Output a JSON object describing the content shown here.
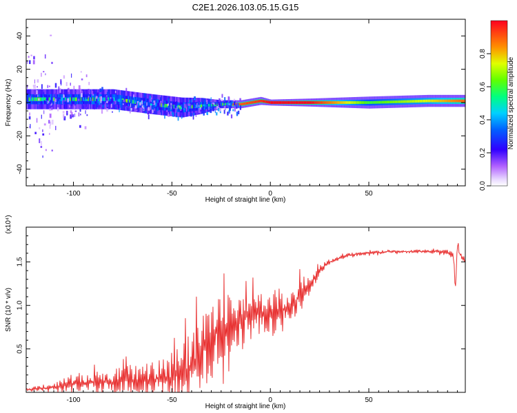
{
  "title": "C2E1.2026.103.05.15.G15",
  "colors": {
    "snr_line": "#e83030",
    "axis": "#000000",
    "ridge_hot": "#ff2040",
    "ridge_mid": "#20e060",
    "spread_low": "#7a00ff"
  },
  "chart_data": [
    {
      "id": "spectrogram",
      "type": "heatmap",
      "xlabel": "Height of straight line (km)",
      "ylabel": "Frequency (Hz)",
      "xlim": [
        -124,
        99
      ],
      "ylim": [
        -50,
        50
      ],
      "x_ticks": [
        -100,
        -50,
        0,
        50
      ],
      "y_ticks": [
        -40,
        -20,
        0,
        20,
        40
      ],
      "colorbar": {
        "label": "Normalized spectral amplitude",
        "range": [
          0,
          1
        ],
        "ticks": [
          "0.0",
          "0.2",
          "0.4",
          "0.6",
          "0.8"
        ],
        "tick_values": [
          0.0,
          0.2,
          0.4,
          0.6,
          0.8
        ],
        "colormap": "rainbow-violet-to-red"
      },
      "ridge": {
        "description": "noisy broad ridge near 0 Hz below about -20 km; narrow bright ridge near 0 Hz above",
        "x": [
          -124,
          -100,
          -80,
          -60,
          -45,
          -35,
          -25,
          -15,
          -5,
          0,
          20,
          50,
          80,
          99
        ],
        "freq_center_hz": [
          2,
          2,
          2,
          -1,
          -3,
          -2,
          -1,
          -1,
          1,
          0,
          0,
          0,
          1,
          1
        ],
        "freq_halfwidth_hz": [
          5,
          5,
          5,
          5,
          5,
          4,
          2,
          2,
          2,
          1.5,
          2,
          3,
          3,
          3
        ],
        "amplitude": [
          0.4,
          0.45,
          0.5,
          0.4,
          0.35,
          0.45,
          0.8,
          0.9,
          0.95,
          1.0,
          1.0,
          0.6,
          0.75,
          0.9
        ]
      }
    },
    {
      "id": "snr",
      "type": "line",
      "xlabel": "Height of straight line (km)",
      "ylabel": "SNR (10 * v/v)",
      "y_multiplier": "(x10⁴)",
      "xlim": [
        -124,
        99
      ],
      "ylim": [
        0,
        1.9
      ],
      "x_ticks": [
        -100,
        -50,
        0,
        50
      ],
      "y_ticks": [
        "0.5",
        "1.0",
        "1.5"
      ],
      "y_tick_values": [
        0.5,
        1.0,
        1.5
      ],
      "series": [
        {
          "name": "SNR",
          "x": [
            -124,
            -110,
            -100,
            -90,
            -80,
            -70,
            -60,
            -50,
            -45,
            -40,
            -35,
            -30,
            -25,
            -20,
            -15,
            -10,
            -5,
            0,
            5,
            10,
            15,
            20,
            25,
            30,
            40,
            50,
            60,
            70,
            80,
            90,
            93,
            94,
            95,
            96,
            99
          ],
          "y": [
            0.03,
            0.06,
            0.1,
            0.12,
            0.12,
            0.14,
            0.15,
            0.17,
            0.22,
            0.3,
            0.45,
            0.6,
            0.75,
            0.82,
            0.85,
            0.88,
            0.9,
            0.88,
            0.92,
            1.0,
            1.1,
            1.25,
            1.4,
            1.5,
            1.58,
            1.6,
            1.62,
            1.62,
            1.62,
            1.62,
            1.55,
            1.2,
            1.7,
            1.6,
            1.52
          ],
          "noise_amplitude": [
            0.02,
            0.05,
            0.1,
            0.12,
            0.14,
            0.18,
            0.2,
            0.24,
            0.35,
            0.4,
            0.45,
            0.45,
            0.4,
            0.35,
            0.3,
            0.28,
            0.26,
            0.25,
            0.25,
            0.22,
            0.2,
            0.12,
            0.06,
            0.03,
            0.02,
            0.02,
            0.02,
            0.02,
            0.02,
            0.03,
            0.05,
            0.05,
            0.08,
            0.04,
            0.03
          ]
        }
      ]
    }
  ]
}
